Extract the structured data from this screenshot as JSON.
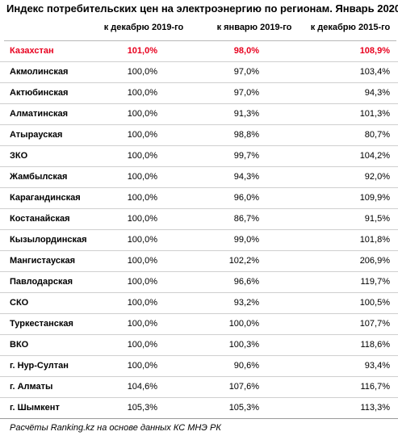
{
  "title": "Индекс потребительских цен на электроэнергию по регионам. Январь 2020",
  "columns": [
    "к декабрю 2019-го",
    "к январю 2019-го",
    "к декабрю 2015-го"
  ],
  "rows": [
    {
      "name": "Казахстан",
      "v1": "101,0%",
      "v2": "98,0%",
      "v3": "108,9%"
    },
    {
      "name": "Акмолинская",
      "v1": "100,0%",
      "v2": "97,0%",
      "v3": "103,4%"
    },
    {
      "name": "Актюбинская",
      "v1": "100,0%",
      "v2": "97,0%",
      "v3": "94,3%"
    },
    {
      "name": "Алматинская",
      "v1": "100,0%",
      "v2": "91,3%",
      "v3": "101,3%"
    },
    {
      "name": "Атырауская",
      "v1": "100,0%",
      "v2": "98,8%",
      "v3": "80,7%"
    },
    {
      "name": "ЗКО",
      "v1": "100,0%",
      "v2": "99,7%",
      "v3": "104,2%"
    },
    {
      "name": "Жамбылская",
      "v1": "100,0%",
      "v2": "94,3%",
      "v3": "92,0%"
    },
    {
      "name": "Карагандинская",
      "v1": "100,0%",
      "v2": "96,0%",
      "v3": "109,9%"
    },
    {
      "name": "Костанайская",
      "v1": "100,0%",
      "v2": "86,7%",
      "v3": "91,5%"
    },
    {
      "name": "Кызылординская",
      "v1": "100,0%",
      "v2": "99,0%",
      "v3": "101,8%"
    },
    {
      "name": "Мангистауская",
      "v1": "100,0%",
      "v2": "102,2%",
      "v3": "206,9%"
    },
    {
      "name": "Павлодарская",
      "v1": "100,0%",
      "v2": "96,6%",
      "v3": "119,7%"
    },
    {
      "name": "СКО",
      "v1": "100,0%",
      "v2": "93,2%",
      "v3": "100,5%"
    },
    {
      "name": "Туркестанская",
      "v1": "100,0%",
      "v2": "100,0%",
      "v3": "107,7%"
    },
    {
      "name": "ВКО",
      "v1": "100,0%",
      "v2": "100,3%",
      "v3": "118,6%"
    },
    {
      "name": "г. Нур-Султан",
      "v1": "100,0%",
      "v2": "90,6%",
      "v3": "93,4%"
    },
    {
      "name": "г. Алматы",
      "v1": "104,6%",
      "v2": "107,6%",
      "v3": "116,7%"
    },
    {
      "name": "г. Шымкент",
      "v1": "105,3%",
      "v2": "105,3%",
      "v3": "113,3%"
    }
  ],
  "source": "Расчёты Ranking.kz на основе данных КС МНЭ РК",
  "colors": {
    "highlight": "#e8001e",
    "grid": "#cfcfcf"
  }
}
